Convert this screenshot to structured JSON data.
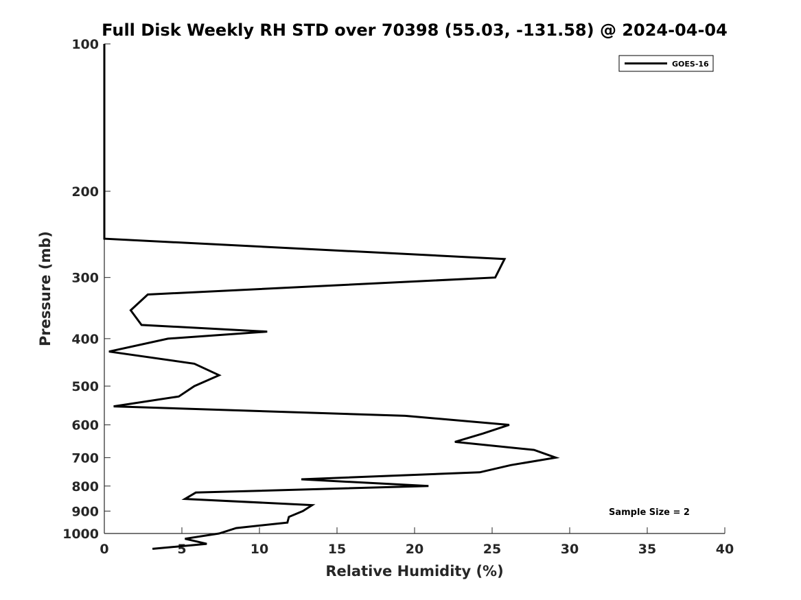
{
  "chart_data": {
    "type": "line",
    "title": "Full Disk Weekly RH STD over 70398 (55.03, -131.58) @ 2024-04-04",
    "xlabel": "Relative Humidity (%)",
    "ylabel": "Pressure (mb)",
    "xlim": [
      0,
      40
    ],
    "ylim": [
      100,
      1000
    ],
    "yscale": "log",
    "y_reversed": true,
    "x_ticks": [
      0,
      5,
      10,
      15,
      20,
      25,
      30,
      35,
      40
    ],
    "x_tick_labels": [
      "0",
      "5",
      "10",
      "15",
      "20",
      "25",
      "30",
      "35",
      "40"
    ],
    "y_ticks": [
      100,
      200,
      300,
      400,
      500,
      600,
      700,
      800,
      900,
      1000
    ],
    "y_tick_labels": [
      "100",
      "200",
      "300",
      "400",
      "500",
      "600",
      "700",
      "800",
      "900",
      "1000"
    ],
    "grid": false,
    "legend_position": "top-right",
    "series": [
      {
        "name": "GOES-16",
        "color": "#000000",
        "points": [
          {
            "x": 0.0,
            "y": 100
          },
          {
            "x": 0.0,
            "y": 150
          },
          {
            "x": 0.0,
            "y": 200
          },
          {
            "x": 0.0,
            "y": 250
          },
          {
            "x": 25.8,
            "y": 275
          },
          {
            "x": 25.2,
            "y": 300
          },
          {
            "x": 2.8,
            "y": 325
          },
          {
            "x": 1.7,
            "y": 350
          },
          {
            "x": 2.4,
            "y": 375
          },
          {
            "x": 10.5,
            "y": 387
          },
          {
            "x": 4.1,
            "y": 400
          },
          {
            "x": 0.3,
            "y": 425
          },
          {
            "x": 5.8,
            "y": 450
          },
          {
            "x": 7.4,
            "y": 475
          },
          {
            "x": 5.8,
            "y": 500
          },
          {
            "x": 4.8,
            "y": 525
          },
          {
            "x": 0.6,
            "y": 550
          },
          {
            "x": 19.4,
            "y": 575
          },
          {
            "x": 26.1,
            "y": 600
          },
          {
            "x": 24.4,
            "y": 625
          },
          {
            "x": 22.6,
            "y": 650
          },
          {
            "x": 27.7,
            "y": 675
          },
          {
            "x": 29.1,
            "y": 700
          },
          {
            "x": 26.2,
            "y": 725
          },
          {
            "x": 24.2,
            "y": 750
          },
          {
            "x": 12.7,
            "y": 775
          },
          {
            "x": 20.9,
            "y": 800
          },
          {
            "x": 5.9,
            "y": 825
          },
          {
            "x": 5.2,
            "y": 850
          },
          {
            "x": 13.4,
            "y": 875
          },
          {
            "x": 12.8,
            "y": 900
          },
          {
            "x": 11.9,
            "y": 925
          },
          {
            "x": 11.8,
            "y": 950
          },
          {
            "x": 8.5,
            "y": 975
          },
          {
            "x": 7.4,
            "y": 1000
          },
          {
            "x": 5.2,
            "y": 1025
          },
          {
            "x": 6.6,
            "y": 1050
          },
          {
            "x": 3.1,
            "y": 1075
          }
        ]
      }
    ],
    "annotations": [
      {
        "text": "Sample Size = 2",
        "position": "bottom-right"
      }
    ]
  }
}
